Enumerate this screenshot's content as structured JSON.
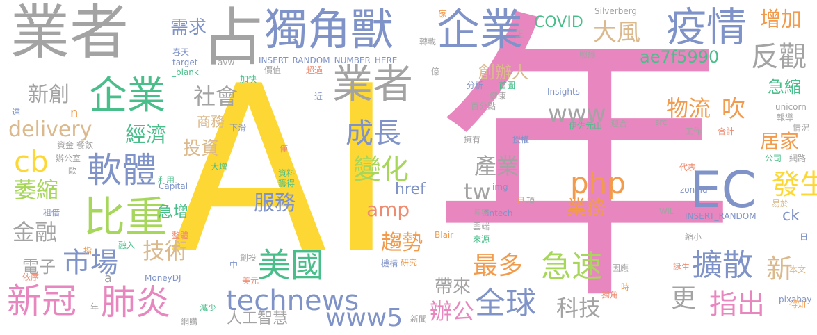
{
  "palette": {
    "gray": "#a3a3a3",
    "yellow": "#fdd835",
    "pink": "#e887bf",
    "blue": "#7f93c8",
    "green": "#49be8a",
    "lime": "#a6d65a",
    "orange": "#f29b4c",
    "tan": "#dbb98c",
    "red": "#ee8c72"
  },
  "words": [
    {
      "text": "AI",
      "color": "yellow"
    },
    {
      "text": "年",
      "color": "pink"
    },
    {
      "text": "業者",
      "color": "gray"
    },
    {
      "text": "占",
      "color": "gray"
    },
    {
      "text": "獨角獸",
      "color": "blue"
    },
    {
      "text": "企業",
      "color": "blue"
    },
    {
      "text": "疫情",
      "color": "blue"
    },
    {
      "text": "增加",
      "color": "orange"
    },
    {
      "text": "反觀",
      "color": "gray"
    },
    {
      "text": "大風",
      "color": "tan"
    },
    {
      "text": "需求",
      "color": "blue"
    },
    {
      "text": "企業",
      "color": "green"
    },
    {
      "text": "業者",
      "color": "gray"
    },
    {
      "text": "新創",
      "color": "gray"
    },
    {
      "text": "社會",
      "color": "gray"
    },
    {
      "text": "創辦人",
      "color": "tan"
    },
    {
      "text": "ae7f5990",
      "color": "green"
    },
    {
      "text": "COVID",
      "color": "green"
    },
    {
      "text": "www",
      "color": "gray"
    },
    {
      "text": "物流",
      "color": "orange"
    },
    {
      "text": "吹",
      "color": "orange"
    },
    {
      "text": "急縮",
      "color": "green"
    },
    {
      "text": "delivery",
      "color": "tan"
    },
    {
      "text": "經濟",
      "color": "green"
    },
    {
      "text": "成長",
      "color": "blue"
    },
    {
      "text": "居家",
      "color": "orange"
    },
    {
      "text": "cb",
      "color": "yellow"
    },
    {
      "text": "軟體",
      "color": "blue"
    },
    {
      "text": "投資",
      "color": "tan"
    },
    {
      "text": "變化",
      "color": "lime"
    },
    {
      "text": "產業",
      "color": "gray"
    },
    {
      "text": "EC",
      "color": "blue"
    },
    {
      "text": "發生",
      "color": "yellow"
    },
    {
      "text": "php",
      "color": "orange"
    },
    {
      "text": "萎縮",
      "color": "lime"
    },
    {
      "text": "比重",
      "color": "lime"
    },
    {
      "text": "tw",
      "color": "gray"
    },
    {
      "text": "服務",
      "color": "blue"
    },
    {
      "text": "amp",
      "color": "red"
    },
    {
      "text": "業務",
      "color": "orange"
    },
    {
      "text": "金融",
      "color": "gray"
    },
    {
      "text": "急增",
      "color": "green"
    },
    {
      "text": "href",
      "color": "blue"
    },
    {
      "text": "ck",
      "color": "blue"
    },
    {
      "text": "市場",
      "color": "blue"
    },
    {
      "text": "技術",
      "color": "tan"
    },
    {
      "text": "趨勢",
      "color": "orange"
    },
    {
      "text": "電子",
      "color": "gray"
    },
    {
      "text": "美國",
      "color": "green"
    },
    {
      "text": "最多",
      "color": "orange"
    },
    {
      "text": "急速",
      "color": "lime"
    },
    {
      "text": "擴散",
      "color": "blue"
    },
    {
      "text": "新",
      "color": "tan"
    },
    {
      "text": "更",
      "color": "gray"
    },
    {
      "text": "新冠",
      "color": "pink"
    },
    {
      "text": "肺炎",
      "color": "pink"
    },
    {
      "text": "technews",
      "color": "blue"
    },
    {
      "text": "帶來",
      "color": "gray"
    },
    {
      "text": "全球",
      "color": "blue"
    },
    {
      "text": "指出",
      "color": "pink"
    },
    {
      "text": "www5",
      "color": "blue"
    },
    {
      "text": "辦公",
      "color": "pink"
    },
    {
      "text": "科技",
      "color": "gray"
    },
    {
      "text": "人工智慧",
      "color": "gray"
    },
    {
      "text": "a",
      "color": "gray"
    },
    {
      "text": "n",
      "color": "orange"
    },
    {
      "text": "INSERT_RANDOM_NUMBER_HERE",
      "color": "blue"
    },
    {
      "text": "INSERT_RANDOM",
      "color": "blue"
    },
    {
      "text": "Insights",
      "color": "blue"
    },
    {
      "text": "MoneyDJ",
      "color": "blue"
    },
    {
      "text": "Silverberg",
      "color": "gray"
    },
    {
      "text": "unicorn",
      "color": "gray"
    },
    {
      "text": "pixabay",
      "color": "blue"
    },
    {
      "text": "fintech",
      "color": "blue"
    },
    {
      "text": "zoneid",
      "color": "blue"
    },
    {
      "text": "Capital",
      "color": "blue"
    },
    {
      "text": "target",
      "color": "blue"
    },
    {
      "text": "_blank",
      "color": "green"
    },
    {
      "text": "avw",
      "color": "gray"
    },
    {
      "text": "src",
      "color": "gray"
    },
    {
      "text": "img",
      "color": "blue"
    },
    {
      "text": "WiL",
      "color": "gray"
    },
    {
      "text": "Blair",
      "color": "orange"
    },
    {
      "text": "伊佐元山",
      "color": "green"
    },
    {
      "text": "商務",
      "color": "tan"
    },
    {
      "text": "下滑",
      "color": "blue"
    },
    {
      "text": "大增",
      "color": "green"
    },
    {
      "text": "春天",
      "color": "blue"
    },
    {
      "text": "利用",
      "color": "green"
    },
    {
      "text": "加快",
      "color": "green"
    },
    {
      "text": "價值",
      "color": "gray"
    },
    {
      "text": "超過",
      "color": "red"
    },
    {
      "text": "轉載",
      "color": "gray"
    },
    {
      "text": "億",
      "color": "gray"
    },
    {
      "text": "分析",
      "color": "blue"
    },
    {
      "text": "首圖",
      "color": "green"
    },
    {
      "text": "照護",
      "color": "gray"
    },
    {
      "text": "健康",
      "color": "gray"
    },
    {
      "text": "百分點",
      "color": "gray"
    },
    {
      "text": "擁有",
      "color": "gray"
    },
    {
      "text": "授權",
      "color": "blue"
    },
    {
      "text": "迎合",
      "color": "gray"
    },
    {
      "text": "工作",
      "color": "gray"
    },
    {
      "text": "合計",
      "color": "red"
    },
    {
      "text": "報導",
      "color": "gray"
    },
    {
      "text": "情況",
      "color": "gray"
    },
    {
      "text": "網路",
      "color": "gray"
    },
    {
      "text": "公司",
      "color": "green"
    },
    {
      "text": "代表",
      "color": "red"
    },
    {
      "text": "易於",
      "color": "tan"
    },
    {
      "text": "日",
      "color": "blue"
    },
    {
      "text": "縮小",
      "color": "gray"
    },
    {
      "text": "誕生",
      "color": "red"
    },
    {
      "text": "本文",
      "color": "tan"
    },
    {
      "text": "因應",
      "color": "gray"
    },
    {
      "text": "時",
      "color": "orange"
    },
    {
      "text": "獨角",
      "color": "red"
    },
    {
      "text": "得知",
      "color": "orange"
    },
    {
      "text": "來源",
      "color": "green"
    },
    {
      "text": "陣容",
      "color": "gray"
    },
    {
      "text": "雲端",
      "color": "gray"
    },
    {
      "text": "月",
      "color": "orange"
    },
    {
      "text": "項",
      "color": "gray"
    },
    {
      "text": "研究",
      "color": "orange"
    },
    {
      "text": "機構",
      "color": "blue"
    },
    {
      "text": "資料",
      "color": "green"
    },
    {
      "text": "籌得",
      "color": "green"
    },
    {
      "text": "創投",
      "color": "gray"
    },
    {
      "text": "中",
      "color": "blue"
    },
    {
      "text": "美元",
      "color": "red"
    },
    {
      "text": "減少",
      "color": "green"
    },
    {
      "text": "網購",
      "color": "gray"
    },
    {
      "text": "新聞",
      "color": "gray"
    },
    {
      "text": "一年",
      "color": "gray"
    },
    {
      "text": "依序",
      "color": "red"
    },
    {
      "text": "融入",
      "color": "green"
    },
    {
      "text": "指",
      "color": "orange"
    },
    {
      "text": "整體",
      "color": "red"
    },
    {
      "text": "租借",
      "color": "blue"
    },
    {
      "text": "歐",
      "color": "gray"
    },
    {
      "text": "辦公室",
      "color": "gray"
    },
    {
      "text": "資金",
      "color": "gray"
    },
    {
      "text": "餐飲",
      "color": "gray"
    },
    {
      "text": "達",
      "color": "blue"
    },
    {
      "text": "近",
      "color": "blue"
    },
    {
      "text": "正",
      "color": "gray"
    },
    {
      "text": "家",
      "color": "orange"
    },
    {
      "text": "僅",
      "color": "red"
    }
  ]
}
